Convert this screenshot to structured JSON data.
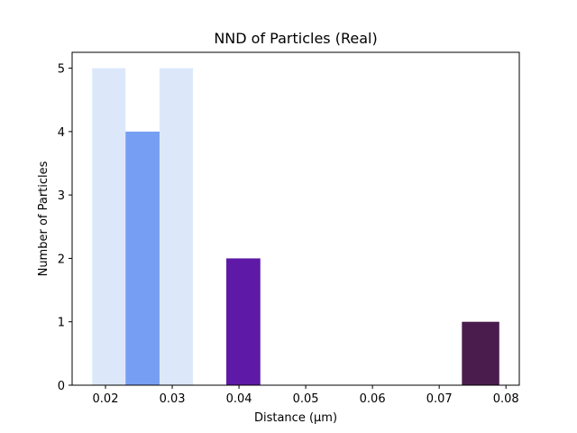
{
  "chart_data": {
    "type": "bar",
    "title": "NND of Particles (Real)",
    "xlabel": "Distance (μm)",
    "ylabel": "Number of Particles",
    "xlim": [
      0.015,
      0.082
    ],
    "ylim": [
      0,
      5.25
    ],
    "grid": false,
    "x_ticks": [
      {
        "value": 0.02,
        "label": "0.02"
      },
      {
        "value": 0.03,
        "label": "0.03"
      },
      {
        "value": 0.04,
        "label": "0.04"
      },
      {
        "value": 0.05,
        "label": "0.05"
      },
      {
        "value": 0.06,
        "label": "0.06"
      },
      {
        "value": 0.07,
        "label": "0.07"
      },
      {
        "value": 0.08,
        "label": "0.08"
      }
    ],
    "y_ticks": [
      {
        "value": 0,
        "label": "0"
      },
      {
        "value": 1,
        "label": "1"
      },
      {
        "value": 2,
        "label": "2"
      },
      {
        "value": 3,
        "label": "3"
      },
      {
        "value": 4,
        "label": "4"
      },
      {
        "value": 5,
        "label": "5"
      }
    ],
    "bins": [
      {
        "x0": 0.018,
        "x1": 0.023,
        "count": 5,
        "color": "#dce8fa"
      },
      {
        "x0": 0.023,
        "x1": 0.0281,
        "count": 4,
        "color": "#769ff3"
      },
      {
        "x0": 0.0281,
        "x1": 0.0331,
        "count": 5,
        "color": "#dce8fa"
      },
      {
        "x0": 0.0331,
        "x1": 0.0381,
        "count": 0,
        "color": "#ffffff"
      },
      {
        "x0": 0.0381,
        "x1": 0.0432,
        "count": 2,
        "color": "#5e1aa6"
      },
      {
        "x0": 0.0432,
        "x1": 0.0482,
        "count": 0,
        "color": "#ffffff"
      },
      {
        "x0": 0.0482,
        "x1": 0.0532,
        "count": 0,
        "color": "#ffffff"
      },
      {
        "x0": 0.0532,
        "x1": 0.0583,
        "count": 0,
        "color": "#ffffff"
      },
      {
        "x0": 0.0583,
        "x1": 0.0633,
        "count": 0,
        "color": "#ffffff"
      },
      {
        "x0": 0.0633,
        "x1": 0.0683,
        "count": 0,
        "color": "#ffffff"
      },
      {
        "x0": 0.0683,
        "x1": 0.0734,
        "count": 0,
        "color": "#ffffff"
      },
      {
        "x0": 0.0734,
        "x1": 0.079,
        "count": 1,
        "color": "#4a1c4d"
      }
    ]
  }
}
